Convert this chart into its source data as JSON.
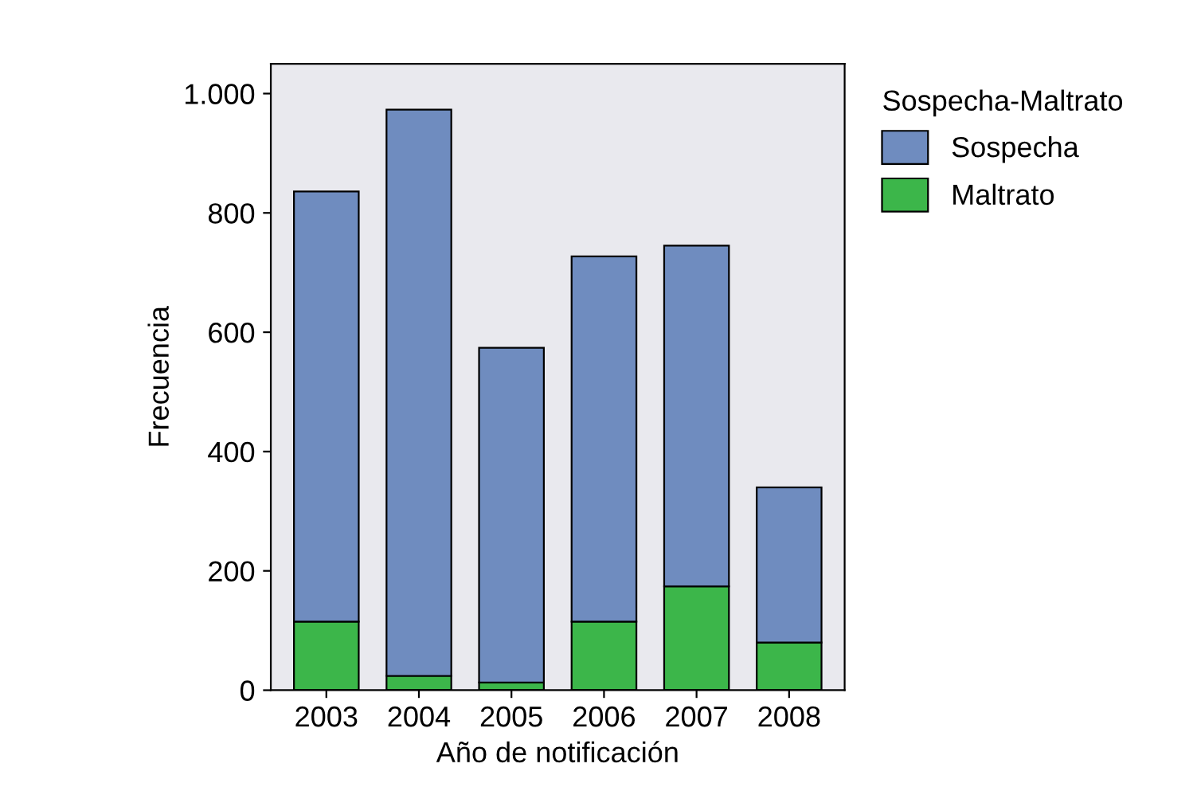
{
  "chart_data": {
    "type": "bar",
    "stacked": true,
    "xlabel": "Año de notificación",
    "ylabel": "Frecuencia",
    "legend_title": "Sospecha-Maltrato",
    "legend": "top right",
    "categories": [
      "2003",
      "2004",
      "2005",
      "2006",
      "2007",
      "2008"
    ],
    "series": [
      {
        "name": "Maltrato",
        "color": "#3cb64a",
        "values": [
          115,
          24,
          13,
          115,
          174,
          80
        ]
      },
      {
        "name": "Sospecha",
        "color": "#6f8cbf",
        "values": [
          721,
          949,
          561,
          612,
          571,
          260
        ]
      }
    ],
    "ylim": [
      0,
      1050
    ],
    "yticks": [
      0,
      200,
      400,
      600,
      800,
      {
        "value": 1000,
        "label": "1.000"
      }
    ],
    "grid": false
  }
}
